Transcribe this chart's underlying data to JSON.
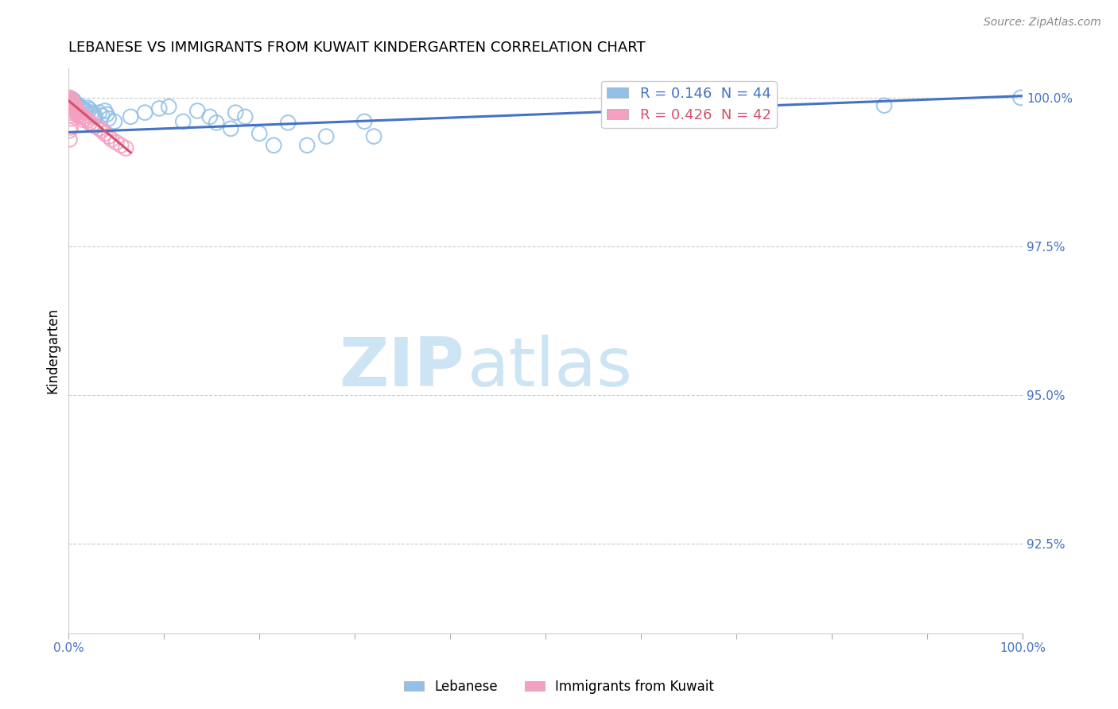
{
  "title": "LEBANESE VS IMMIGRANTS FROM KUWAIT KINDERGARTEN CORRELATION CHART",
  "source": "Source: ZipAtlas.com",
  "ylabel": "Kindergarten",
  "ytick_labels": [
    "100.0%",
    "97.5%",
    "95.0%",
    "92.5%"
  ],
  "ytick_values": [
    1.0,
    0.975,
    0.95,
    0.925
  ],
  "xlim": [
    0.0,
    1.0
  ],
  "ylim": [
    0.91,
    1.005
  ],
  "legend1_label": "Lebanese",
  "legend2_label": "Immigrants from Kuwait",
  "blue_color": "#92c0e8",
  "pink_color": "#f4a0c0",
  "line_blue_color": "#4472c4",
  "line_pink_color": "#d45070",
  "blue_scatter": [
    [
      0.002,
      0.9995
    ],
    [
      0.003,
      0.9998
    ],
    [
      0.004,
      0.9993
    ],
    [
      0.005,
      0.9996
    ],
    [
      0.006,
      0.9992
    ],
    [
      0.007,
      0.999
    ],
    [
      0.01,
      0.9988
    ],
    [
      0.012,
      0.9985
    ],
    [
      0.014,
      0.9982
    ],
    [
      0.016,
      0.998
    ],
    [
      0.018,
      0.9978
    ],
    [
      0.02,
      0.9983
    ],
    [
      0.022,
      0.998
    ],
    [
      0.024,
      0.9975
    ],
    [
      0.026,
      0.9972
    ],
    [
      0.028,
      0.9968
    ],
    [
      0.032,
      0.9975
    ],
    [
      0.035,
      0.997
    ],
    [
      0.038,
      0.9978
    ],
    [
      0.04,
      0.9972
    ],
    [
      0.042,
      0.9965
    ],
    [
      0.048,
      0.996
    ],
    [
      0.065,
      0.9968
    ],
    [
      0.08,
      0.9975
    ],
    [
      0.095,
      0.9982
    ],
    [
      0.105,
      0.9985
    ],
    [
      0.12,
      0.996
    ],
    [
      0.135,
      0.9978
    ],
    [
      0.148,
      0.9968
    ],
    [
      0.155,
      0.9958
    ],
    [
      0.17,
      0.9948
    ],
    [
      0.175,
      0.9975
    ],
    [
      0.185,
      0.9968
    ],
    [
      0.2,
      0.994
    ],
    [
      0.215,
      0.992
    ],
    [
      0.23,
      0.9958
    ],
    [
      0.25,
      0.992
    ],
    [
      0.27,
      0.9935
    ],
    [
      0.31,
      0.996
    ],
    [
      0.32,
      0.9935
    ],
    [
      0.65,
      0.9985
    ],
    [
      0.855,
      0.9987
    ],
    [
      0.998,
      1.0
    ]
  ],
  "pink_scatter": [
    [
      0.001,
      1.0
    ],
    [
      0.002,
      0.9998
    ],
    [
      0.002,
      0.9996
    ],
    [
      0.003,
      0.9995
    ],
    [
      0.003,
      0.9993
    ],
    [
      0.003,
      0.999
    ],
    [
      0.004,
      0.9992
    ],
    [
      0.004,
      0.9988
    ],
    [
      0.005,
      0.999
    ],
    [
      0.005,
      0.9985
    ],
    [
      0.006,
      0.9987
    ],
    [
      0.006,
      0.9982
    ],
    [
      0.007,
      0.9984
    ],
    [
      0.007,
      0.9979
    ],
    [
      0.008,
      0.9981
    ],
    [
      0.008,
      0.9975
    ],
    [
      0.009,
      0.9978
    ],
    [
      0.01,
      0.9975
    ],
    [
      0.01,
      0.997
    ],
    [
      0.012,
      0.9972
    ],
    [
      0.012,
      0.9968
    ],
    [
      0.015,
      0.9968
    ],
    [
      0.015,
      0.9963
    ],
    [
      0.018,
      0.9965
    ],
    [
      0.02,
      0.9962
    ],
    [
      0.022,
      0.9958
    ],
    [
      0.025,
      0.9955
    ],
    [
      0.028,
      0.9952
    ],
    [
      0.032,
      0.9948
    ],
    [
      0.035,
      0.9945
    ],
    [
      0.038,
      0.994
    ],
    [
      0.042,
      0.9935
    ],
    [
      0.045,
      0.993
    ],
    [
      0.05,
      0.9925
    ],
    [
      0.055,
      0.992
    ],
    [
      0.06,
      0.9915
    ],
    [
      0.002,
      0.9978
    ],
    [
      0.002,
      0.997
    ],
    [
      0.003,
      0.9965
    ],
    [
      0.002,
      0.995
    ],
    [
      0.001,
      0.9945
    ],
    [
      0.001,
      0.993
    ]
  ],
  "blue_trendline_x": [
    0.0,
    1.0
  ],
  "blue_trendline_y": [
    0.9942,
    1.0003
  ],
  "pink_trendline_x": [
    0.0,
    0.065
  ],
  "pink_trendline_y": [
    0.9995,
    0.9908
  ],
  "watermark_zip": "ZIP",
  "watermark_atlas": "atlas",
  "watermark_color": "#cde4f5",
  "background_color": "#ffffff"
}
